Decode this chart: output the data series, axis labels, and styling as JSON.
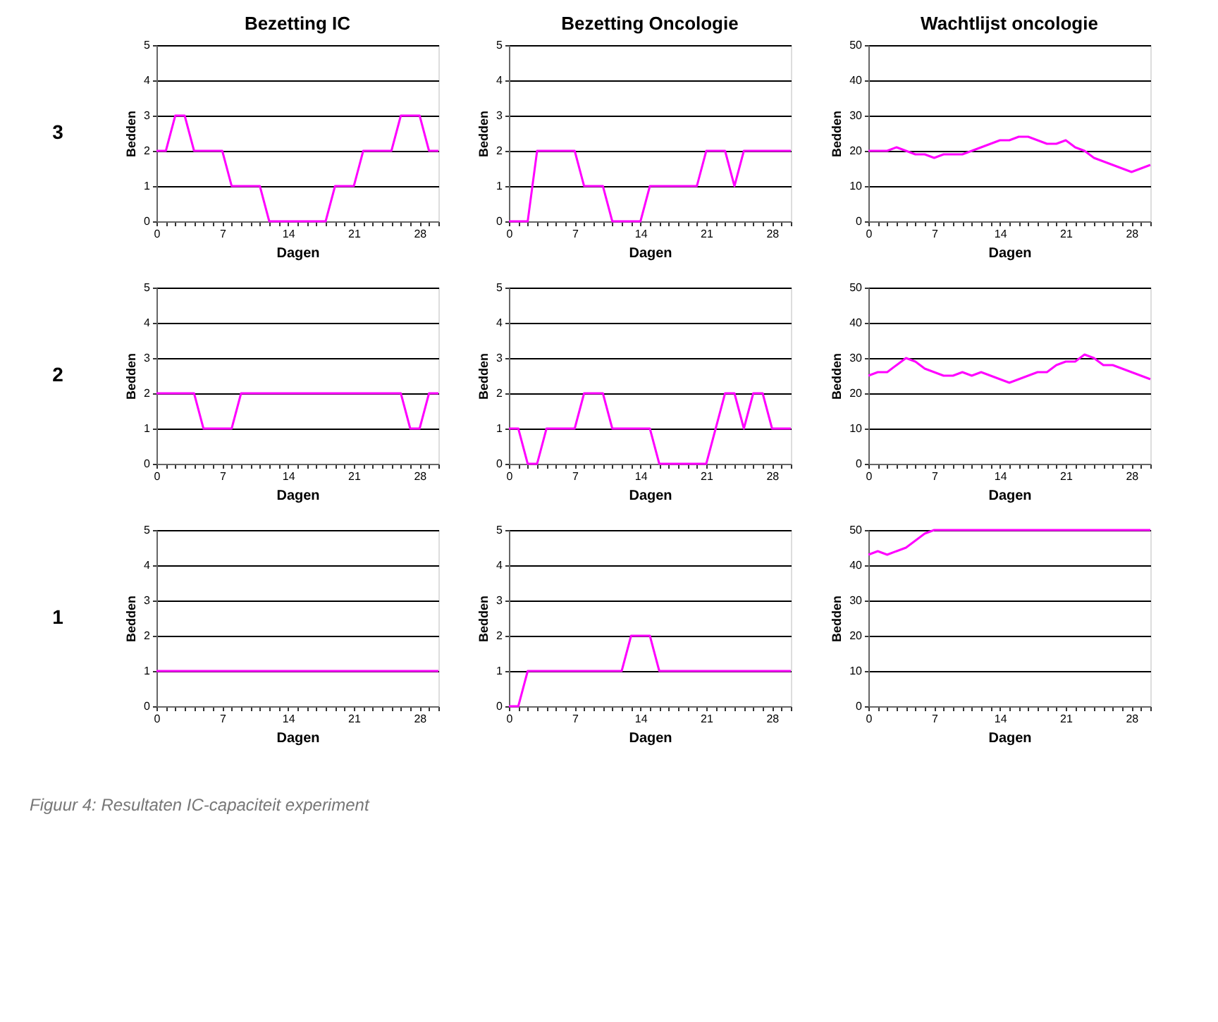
{
  "chart_data": [
    {
      "type": "line",
      "title": "Bezetting IC",
      "xlabel": "Dagen",
      "ylabel": "Bedden",
      "annotations": [
        "3"
      ],
      "grid": "y",
      "xlim": [
        0,
        30
      ],
      "ylim": [
        0,
        5
      ],
      "yticks": [
        0,
        1,
        2,
        3,
        4,
        5
      ],
      "xticks": [
        0,
        {
          "value": 1,
          "label": null
        },
        {
          "value": 2,
          "label": null
        },
        {
          "value": 3,
          "label": null
        },
        {
          "value": 4,
          "label": null
        },
        {
          "value": 5,
          "label": null
        },
        {
          "value": 6,
          "label": null
        },
        7,
        {
          "value": 8,
          "label": null
        },
        {
          "value": 9,
          "label": null
        },
        {
          "value": 10,
          "label": null
        },
        {
          "value": 11,
          "label": null
        },
        {
          "value": 12,
          "label": null
        },
        {
          "value": 13,
          "label": null
        },
        14,
        {
          "value": 15,
          "label": null
        },
        {
          "value": 16,
          "label": null
        },
        {
          "value": 17,
          "label": null
        },
        {
          "value": 18,
          "label": null
        },
        {
          "value": 19,
          "label": null
        },
        {
          "value": 20,
          "label": null
        },
        21,
        {
          "value": 22,
          "label": null
        },
        {
          "value": 23,
          "label": null
        },
        {
          "value": 24,
          "label": null
        },
        {
          "value": 25,
          "label": null
        },
        {
          "value": 26,
          "label": null
        },
        {
          "value": 27,
          "label": null
        },
        28,
        {
          "value": 29,
          "label": null
        },
        {
          "value": 30,
          "label": null
        }
      ],
      "x": [
        0,
        1,
        2,
        3,
        4,
        5,
        6,
        7,
        8,
        9,
        10,
        11,
        12,
        13,
        14,
        15,
        16,
        17,
        18,
        19,
        20,
        21,
        22,
        23,
        24,
        25,
        26,
        27,
        28,
        29,
        30
      ],
      "series": [
        {
          "color": "#ff00ff",
          "values": [
            2,
            2,
            3,
            3,
            2,
            2,
            2,
            2,
            1,
            1,
            1,
            1,
            0,
            0,
            0,
            0,
            0,
            0,
            0,
            1,
            1,
            1,
            2,
            2,
            2,
            2,
            3,
            3,
            3,
            2,
            2
          ]
        }
      ]
    },
    {
      "type": "line",
      "title": "Bezetting Oncologie",
      "xlabel": "Dagen",
      "ylabel": "Bedden",
      "grid": "y",
      "xlim": [
        0,
        30
      ],
      "ylim": [
        0,
        5
      ],
      "yticks": [
        0,
        1,
        2,
        3,
        4,
        5
      ],
      "xticks": [
        0,
        {
          "value": 1,
          "label": null
        },
        {
          "value": 2,
          "label": null
        },
        {
          "value": 3,
          "label": null
        },
        {
          "value": 4,
          "label": null
        },
        {
          "value": 5,
          "label": null
        },
        {
          "value": 6,
          "label": null
        },
        7,
        {
          "value": 8,
          "label": null
        },
        {
          "value": 9,
          "label": null
        },
        {
          "value": 10,
          "label": null
        },
        {
          "value": 11,
          "label": null
        },
        {
          "value": 12,
          "label": null
        },
        {
          "value": 13,
          "label": null
        },
        14,
        {
          "value": 15,
          "label": null
        },
        {
          "value": 16,
          "label": null
        },
        {
          "value": 17,
          "label": null
        },
        {
          "value": 18,
          "label": null
        },
        {
          "value": 19,
          "label": null
        },
        {
          "value": 20,
          "label": null
        },
        21,
        {
          "value": 22,
          "label": null
        },
        {
          "value": 23,
          "label": null
        },
        {
          "value": 24,
          "label": null
        },
        {
          "value": 25,
          "label": null
        },
        {
          "value": 26,
          "label": null
        },
        {
          "value": 27,
          "label": null
        },
        28,
        {
          "value": 29,
          "label": null
        },
        {
          "value": 30,
          "label": null
        }
      ],
      "x": [
        0,
        1,
        2,
        3,
        4,
        5,
        6,
        7,
        8,
        9,
        10,
        11,
        12,
        13,
        14,
        15,
        16,
        17,
        18,
        19,
        20,
        21,
        22,
        23,
        24,
        25,
        26,
        27,
        28,
        29,
        30
      ],
      "series": [
        {
          "color": "#ff00ff",
          "values": [
            0,
            0,
            0,
            2,
            2,
            2,
            2,
            2,
            1,
            1,
            1,
            0,
            0,
            0,
            0,
            1,
            1,
            1,
            1,
            1,
            1,
            2,
            2,
            2,
            1,
            2,
            2,
            2,
            2,
            2,
            2
          ]
        }
      ]
    },
    {
      "type": "line",
      "title": "Wachtlijst oncologie",
      "xlabel": "Dagen",
      "ylabel": "Bedden",
      "grid": "y",
      "xlim": [
        0,
        30
      ],
      "ylim": [
        0,
        50
      ],
      "yticks": [
        0,
        10,
        20,
        30,
        40,
        50
      ],
      "xticks": [
        0,
        {
          "value": 1,
          "label": null
        },
        {
          "value": 2,
          "label": null
        },
        {
          "value": 3,
          "label": null
        },
        {
          "value": 4,
          "label": null
        },
        {
          "value": 5,
          "label": null
        },
        {
          "value": 6,
          "label": null
        },
        7,
        {
          "value": 8,
          "label": null
        },
        {
          "value": 9,
          "label": null
        },
        {
          "value": 10,
          "label": null
        },
        {
          "value": 11,
          "label": null
        },
        {
          "value": 12,
          "label": null
        },
        {
          "value": 13,
          "label": null
        },
        14,
        {
          "value": 15,
          "label": null
        },
        {
          "value": 16,
          "label": null
        },
        {
          "value": 17,
          "label": null
        },
        {
          "value": 18,
          "label": null
        },
        {
          "value": 19,
          "label": null
        },
        {
          "value": 20,
          "label": null
        },
        21,
        {
          "value": 22,
          "label": null
        },
        {
          "value": 23,
          "label": null
        },
        {
          "value": 24,
          "label": null
        },
        {
          "value": 25,
          "label": null
        },
        {
          "value": 26,
          "label": null
        },
        {
          "value": 27,
          "label": null
        },
        28,
        {
          "value": 29,
          "label": null
        },
        {
          "value": 30,
          "label": null
        }
      ],
      "x": [
        0,
        1,
        2,
        3,
        4,
        5,
        6,
        7,
        8,
        9,
        10,
        11,
        12,
        13,
        14,
        15,
        16,
        17,
        18,
        19,
        20,
        21,
        22,
        23,
        24,
        25,
        26,
        27,
        28,
        29,
        30
      ],
      "series": [
        {
          "color": "#ff00ff",
          "values": [
            20,
            20,
            20,
            21,
            20,
            19,
            19,
            18,
            19,
            19,
            19,
            20,
            21,
            22,
            23,
            23,
            24,
            24,
            23,
            22,
            22,
            23,
            21,
            20,
            18,
            17,
            16,
            15,
            14,
            15,
            16
          ]
        }
      ]
    },
    {
      "type": "line",
      "xlabel": "Dagen",
      "ylabel": "Bedden",
      "annotations": [
        "2"
      ],
      "grid": "y",
      "xlim": [
        0,
        30
      ],
      "ylim": [
        0,
        5
      ],
      "yticks": [
        0,
        1,
        2,
        3,
        4,
        5
      ],
      "xticks": [
        0,
        {
          "value": 1,
          "label": null
        },
        {
          "value": 2,
          "label": null
        },
        {
          "value": 3,
          "label": null
        },
        {
          "value": 4,
          "label": null
        },
        {
          "value": 5,
          "label": null
        },
        {
          "value": 6,
          "label": null
        },
        7,
        {
          "value": 8,
          "label": null
        },
        {
          "value": 9,
          "label": null
        },
        {
          "value": 10,
          "label": null
        },
        {
          "value": 11,
          "label": null
        },
        {
          "value": 12,
          "label": null
        },
        {
          "value": 13,
          "label": null
        },
        14,
        {
          "value": 15,
          "label": null
        },
        {
          "value": 16,
          "label": null
        },
        {
          "value": 17,
          "label": null
        },
        {
          "value": 18,
          "label": null
        },
        {
          "value": 19,
          "label": null
        },
        {
          "value": 20,
          "label": null
        },
        21,
        {
          "value": 22,
          "label": null
        },
        {
          "value": 23,
          "label": null
        },
        {
          "value": 24,
          "label": null
        },
        {
          "value": 25,
          "label": null
        },
        {
          "value": 26,
          "label": null
        },
        {
          "value": 27,
          "label": null
        },
        28,
        {
          "value": 29,
          "label": null
        },
        {
          "value": 30,
          "label": null
        }
      ],
      "x": [
        0,
        1,
        2,
        3,
        4,
        5,
        6,
        7,
        8,
        9,
        10,
        11,
        12,
        13,
        14,
        15,
        16,
        17,
        18,
        19,
        20,
        21,
        22,
        23,
        24,
        25,
        26,
        27,
        28,
        29,
        30
      ],
      "series": [
        {
          "color": "#ff00ff",
          "values": [
            2,
            2,
            2,
            2,
            2,
            1,
            1,
            1,
            1,
            2,
            2,
            2,
            2,
            2,
            2,
            2,
            2,
            2,
            2,
            2,
            2,
            2,
            2,
            2,
            2,
            2,
            2,
            1,
            1,
            2,
            2
          ]
        }
      ]
    },
    {
      "type": "line",
      "xlabel": "Dagen",
      "ylabel": "Bedden",
      "grid": "y",
      "xlim": [
        0,
        30
      ],
      "ylim": [
        0,
        5
      ],
      "yticks": [
        0,
        1,
        2,
        3,
        4,
        5
      ],
      "xticks": [
        0,
        {
          "value": 1,
          "label": null
        },
        {
          "value": 2,
          "label": null
        },
        {
          "value": 3,
          "label": null
        },
        {
          "value": 4,
          "label": null
        },
        {
          "value": 5,
          "label": null
        },
        {
          "value": 6,
          "label": null
        },
        7,
        {
          "value": 8,
          "label": null
        },
        {
          "value": 9,
          "label": null
        },
        {
          "value": 10,
          "label": null
        },
        {
          "value": 11,
          "label": null
        },
        {
          "value": 12,
          "label": null
        },
        {
          "value": 13,
          "label": null
        },
        14,
        {
          "value": 15,
          "label": null
        },
        {
          "value": 16,
          "label": null
        },
        {
          "value": 17,
          "label": null
        },
        {
          "value": 18,
          "label": null
        },
        {
          "value": 19,
          "label": null
        },
        {
          "value": 20,
          "label": null
        },
        21,
        {
          "value": 22,
          "label": null
        },
        {
          "value": 23,
          "label": null
        },
        {
          "value": 24,
          "label": null
        },
        {
          "value": 25,
          "label": null
        },
        {
          "value": 26,
          "label": null
        },
        {
          "value": 27,
          "label": null
        },
        28,
        {
          "value": 29,
          "label": null
        },
        {
          "value": 30,
          "label": null
        }
      ],
      "x": [
        0,
        1,
        2,
        3,
        4,
        5,
        6,
        7,
        8,
        9,
        10,
        11,
        12,
        13,
        14,
        15,
        16,
        17,
        18,
        19,
        20,
        21,
        22,
        23,
        24,
        25,
        26,
        27,
        28,
        29,
        30
      ],
      "series": [
        {
          "color": "#ff00ff",
          "values": [
            1,
            1,
            0,
            0,
            1,
            1,
            1,
            1,
            2,
            2,
            2,
            1,
            1,
            1,
            1,
            1,
            0,
            0,
            0,
            0,
            0,
            0,
            1,
            2,
            2,
            1,
            2,
            2,
            1,
            1,
            1
          ]
        }
      ]
    },
    {
      "type": "line",
      "xlabel": "Dagen",
      "ylabel": "Bedden",
      "grid": "y",
      "xlim": [
        0,
        30
      ],
      "ylim": [
        0,
        50
      ],
      "yticks": [
        0,
        10,
        20,
        30,
        40,
        50
      ],
      "xticks": [
        0,
        {
          "value": 1,
          "label": null
        },
        {
          "value": 2,
          "label": null
        },
        {
          "value": 3,
          "label": null
        },
        {
          "value": 4,
          "label": null
        },
        {
          "value": 5,
          "label": null
        },
        {
          "value": 6,
          "label": null
        },
        7,
        {
          "value": 8,
          "label": null
        },
        {
          "value": 9,
          "label": null
        },
        {
          "value": 10,
          "label": null
        },
        {
          "value": 11,
          "label": null
        },
        {
          "value": 12,
          "label": null
        },
        {
          "value": 13,
          "label": null
        },
        14,
        {
          "value": 15,
          "label": null
        },
        {
          "value": 16,
          "label": null
        },
        {
          "value": 17,
          "label": null
        },
        {
          "value": 18,
          "label": null
        },
        {
          "value": 19,
          "label": null
        },
        {
          "value": 20,
          "label": null
        },
        21,
        {
          "value": 22,
          "label": null
        },
        {
          "value": 23,
          "label": null
        },
        {
          "value": 24,
          "label": null
        },
        {
          "value": 25,
          "label": null
        },
        {
          "value": 26,
          "label": null
        },
        {
          "value": 27,
          "label": null
        },
        28,
        {
          "value": 29,
          "label": null
        },
        {
          "value": 30,
          "label": null
        }
      ],
      "x": [
        0,
        1,
        2,
        3,
        4,
        5,
        6,
        7,
        8,
        9,
        10,
        11,
        12,
        13,
        14,
        15,
        16,
        17,
        18,
        19,
        20,
        21,
        22,
        23,
        24,
        25,
        26,
        27,
        28,
        29,
        30
      ],
      "series": [
        {
          "color": "#ff00ff",
          "values": [
            25,
            26,
            26,
            28,
            30,
            29,
            27,
            26,
            25,
            25,
            26,
            25,
            26,
            25,
            24,
            23,
            24,
            25,
            26,
            26,
            28,
            29,
            29,
            31,
            30,
            28,
            28,
            27,
            26,
            25,
            24
          ]
        }
      ]
    },
    {
      "type": "line",
      "xlabel": "Dagen",
      "ylabel": "Bedden",
      "annotations": [
        "1",
        "Figuur 4: Resultaten IC-capaciteit experiment"
      ],
      "grid": "y",
      "xlim": [
        0,
        30
      ],
      "ylim": [
        0,
        5
      ],
      "yticks": [
        0,
        1,
        2,
        3,
        4,
        5
      ],
      "xticks": [
        0,
        {
          "value": 1,
          "label": null
        },
        {
          "value": 2,
          "label": null
        },
        {
          "value": 3,
          "label": null
        },
        {
          "value": 4,
          "label": null
        },
        {
          "value": 5,
          "label": null
        },
        {
          "value": 6,
          "label": null
        },
        7,
        {
          "value": 8,
          "label": null
        },
        {
          "value": 9,
          "label": null
        },
        {
          "value": 10,
          "label": null
        },
        {
          "value": 11,
          "label": null
        },
        {
          "value": 12,
          "label": null
        },
        {
          "value": 13,
          "label": null
        },
        14,
        {
          "value": 15,
          "label": null
        },
        {
          "value": 16,
          "label": null
        },
        {
          "value": 17,
          "label": null
        },
        {
          "value": 18,
          "label": null
        },
        {
          "value": 19,
          "label": null
        },
        {
          "value": 20,
          "label": null
        },
        21,
        {
          "value": 22,
          "label": null
        },
        {
          "value": 23,
          "label": null
        },
        {
          "value": 24,
          "label": null
        },
        {
          "value": 25,
          "label": null
        },
        {
          "value": 26,
          "label": null
        },
        {
          "value": 27,
          "label": null
        },
        28,
        {
          "value": 29,
          "label": null
        },
        {
          "value": 30,
          "label": null
        }
      ],
      "x": [
        0,
        1,
        2,
        3,
        4,
        5,
        6,
        7,
        8,
        9,
        10,
        11,
        12,
        13,
        14,
        15,
        16,
        17,
        18,
        19,
        20,
        21,
        22,
        23,
        24,
        25,
        26,
        27,
        28,
        29,
        30
      ],
      "series": [
        {
          "color": "#ff00ff",
          "values": [
            1,
            1,
            1,
            1,
            1,
            1,
            1,
            1,
            1,
            1,
            1,
            1,
            1,
            1,
            1,
            1,
            1,
            1,
            1,
            1,
            1,
            1,
            1,
            1,
            1,
            1,
            1,
            1,
            1,
            1,
            1
          ]
        }
      ]
    },
    {
      "type": "line",
      "xlabel": "Dagen",
      "ylabel": "Bedden",
      "grid": "y",
      "xlim": [
        0,
        30
      ],
      "ylim": [
        0,
        5
      ],
      "yticks": [
        0,
        1,
        2,
        3,
        4,
        5
      ],
      "xticks": [
        0,
        {
          "value": 1,
          "label": null
        },
        {
          "value": 2,
          "label": null
        },
        {
          "value": 3,
          "label": null
        },
        {
          "value": 4,
          "label": null
        },
        {
          "value": 5,
          "label": null
        },
        {
          "value": 6,
          "label": null
        },
        7,
        {
          "value": 8,
          "label": null
        },
        {
          "value": 9,
          "label": null
        },
        {
          "value": 10,
          "label": null
        },
        {
          "value": 11,
          "label": null
        },
        {
          "value": 12,
          "label": null
        },
        {
          "value": 13,
          "label": null
        },
        14,
        {
          "value": 15,
          "label": null
        },
        {
          "value": 16,
          "label": null
        },
        {
          "value": 17,
          "label": null
        },
        {
          "value": 18,
          "label": null
        },
        {
          "value": 19,
          "label": null
        },
        {
          "value": 20,
          "label": null
        },
        21,
        {
          "value": 22,
          "label": null
        },
        {
          "value": 23,
          "label": null
        },
        {
          "value": 24,
          "label": null
        },
        {
          "value": 25,
          "label": null
        },
        {
          "value": 26,
          "label": null
        },
        {
          "value": 27,
          "label": null
        },
        28,
        {
          "value": 29,
          "label": null
        },
        {
          "value": 30,
          "label": null
        }
      ],
      "x": [
        0,
        1,
        2,
        3,
        4,
        5,
        6,
        7,
        8,
        9,
        10,
        11,
        12,
        13,
        14,
        15,
        16,
        17,
        18,
        19,
        20,
        21,
        22,
        23,
        24,
        25,
        26,
        27,
        28,
        29,
        30
      ],
      "series": [
        {
          "color": "#ff00ff",
          "values": [
            0,
            0,
            1,
            1,
            1,
            1,
            1,
            1,
            1,
            1,
            1,
            1,
            1,
            2,
            2,
            2,
            1,
            1,
            1,
            1,
            1,
            1,
            1,
            1,
            1,
            1,
            1,
            1,
            1,
            1,
            1
          ]
        }
      ]
    },
    {
      "type": "line",
      "xlabel": "Dagen",
      "ylabel": "Bedden",
      "grid": "y",
      "xlim": [
        0,
        30
      ],
      "ylim": [
        0,
        50
      ],
      "yticks": [
        0,
        10,
        20,
        30,
        40,
        50
      ],
      "xticks": [
        0,
        {
          "value": 1,
          "label": null
        },
        {
          "value": 2,
          "label": null
        },
        {
          "value": 3,
          "label": null
        },
        {
          "value": 4,
          "label": null
        },
        {
          "value": 5,
          "label": null
        },
        {
          "value": 6,
          "label": null
        },
        7,
        {
          "value": 8,
          "label": null
        },
        {
          "value": 9,
          "label": null
        },
        {
          "value": 10,
          "label": null
        },
        {
          "value": 11,
          "label": null
        },
        {
          "value": 12,
          "label": null
        },
        {
          "value": 13,
          "label": null
        },
        14,
        {
          "value": 15,
          "label": null
        },
        {
          "value": 16,
          "label": null
        },
        {
          "value": 17,
          "label": null
        },
        {
          "value": 18,
          "label": null
        },
        {
          "value": 19,
          "label": null
        },
        {
          "value": 20,
          "label": null
        },
        21,
        {
          "value": 22,
          "label": null
        },
        {
          "value": 23,
          "label": null
        },
        {
          "value": 24,
          "label": null
        },
        {
          "value": 25,
          "label": null
        },
        {
          "value": 26,
          "label": null
        },
        {
          "value": 27,
          "label": null
        },
        28,
        {
          "value": 29,
          "label": null
        },
        {
          "value": 30,
          "label": null
        }
      ],
      "x": [
        0,
        1,
        2,
        3,
        4,
        5,
        6,
        7,
        8,
        9,
        10,
        11,
        12,
        13,
        14,
        15,
        16,
        17,
        18,
        19,
        20,
        21,
        22,
        23,
        24,
        25,
        26,
        27,
        28,
        29,
        30
      ],
      "series": [
        {
          "color": "#ff00ff",
          "values": [
            43,
            44,
            43,
            44,
            45,
            47,
            49,
            50,
            50,
            50,
            50,
            50,
            50,
            50,
            50,
            50,
            50,
            50,
            50,
            50,
            50,
            50,
            50,
            50,
            50,
            50,
            50,
            50,
            50,
            50,
            50
          ]
        }
      ]
    }
  ]
}
